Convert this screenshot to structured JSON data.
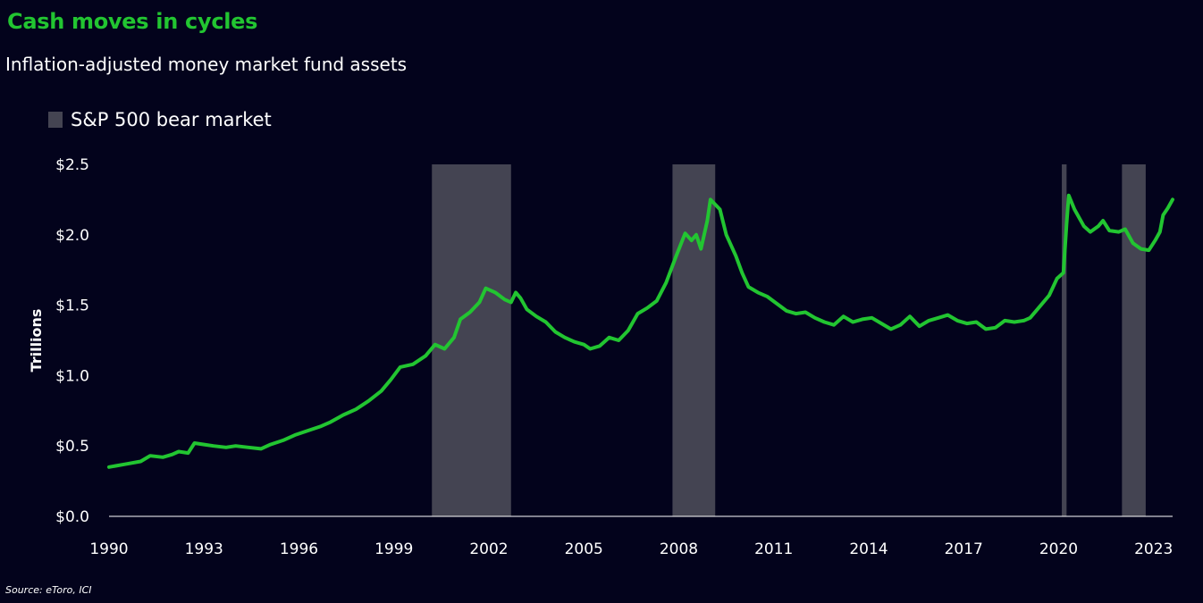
{
  "title": "Cash moves in cycles",
  "subtitle": "Inflation-adjusted money market fund assets",
  "source": "Source: eToro, ICI",
  "legend": {
    "label": "S&P 500 bear market",
    "color": "#444452"
  },
  "colors": {
    "line": "#22c531",
    "background": "#03031c",
    "bear": "#444452",
    "axis": "#ffffff"
  },
  "chart_data": {
    "type": "line",
    "title": "Cash moves in cycles",
    "subtitle": "Inflation-adjusted money market fund assets",
    "xlabel": "",
    "ylabel": "Trillions",
    "x_ticks": [
      "1990",
      "1993",
      "1996",
      "1999",
      "2002",
      "2005",
      "2008",
      "2011",
      "2014",
      "2017",
      "2020",
      "2023"
    ],
    "y_ticks": [
      "$0.0",
      "$0.5",
      "$1.0",
      "$1.5",
      "$2.0",
      "$2.5"
    ],
    "xlim": [
      1990,
      2023.6
    ],
    "ylim": [
      0,
      2.5
    ],
    "grid": false,
    "legend_position": "top-left",
    "bear_markets": [
      {
        "start": 2000.2,
        "end": 2002.7
      },
      {
        "start": 2007.8,
        "end": 2009.15
      },
      {
        "start": 2020.1,
        "end": 2020.25
      },
      {
        "start": 2022.0,
        "end": 2022.75
      }
    ],
    "series": [
      {
        "values": [
          [
            1990.0,
            0.35
          ],
          [
            1990.5,
            0.37
          ],
          [
            1991.0,
            0.39
          ],
          [
            1991.3,
            0.43
          ],
          [
            1991.7,
            0.42
          ],
          [
            1992.0,
            0.44
          ],
          [
            1992.2,
            0.46
          ],
          [
            1992.5,
            0.45
          ],
          [
            1992.7,
            0.52
          ],
          [
            1993.0,
            0.51
          ],
          [
            1993.3,
            0.5
          ],
          [
            1993.7,
            0.49
          ],
          [
            1994.0,
            0.5
          ],
          [
            1994.4,
            0.49
          ],
          [
            1994.8,
            0.48
          ],
          [
            1995.1,
            0.51
          ],
          [
            1995.5,
            0.54
          ],
          [
            1995.9,
            0.58
          ],
          [
            1996.3,
            0.61
          ],
          [
            1996.7,
            0.64
          ],
          [
            1997.0,
            0.67
          ],
          [
            1997.4,
            0.72
          ],
          [
            1997.8,
            0.76
          ],
          [
            1998.2,
            0.82
          ],
          [
            1998.6,
            0.89
          ],
          [
            1998.9,
            0.97
          ],
          [
            1999.2,
            1.06
          ],
          [
            1999.6,
            1.08
          ],
          [
            2000.0,
            1.14
          ],
          [
            2000.3,
            1.22
          ],
          [
            2000.6,
            1.19
          ],
          [
            2000.9,
            1.27
          ],
          [
            2001.1,
            1.4
          ],
          [
            2001.4,
            1.45
          ],
          [
            2001.7,
            1.52
          ],
          [
            2001.9,
            1.62
          ],
          [
            2002.2,
            1.59
          ],
          [
            2002.5,
            1.54
          ],
          [
            2002.7,
            1.52
          ],
          [
            2002.85,
            1.59
          ],
          [
            2003.0,
            1.55
          ],
          [
            2003.2,
            1.47
          ],
          [
            2003.5,
            1.42
          ],
          [
            2003.8,
            1.38
          ],
          [
            2004.1,
            1.31
          ],
          [
            2004.4,
            1.27
          ],
          [
            2004.7,
            1.24
          ],
          [
            2005.0,
            1.22
          ],
          [
            2005.2,
            1.19
          ],
          [
            2005.5,
            1.21
          ],
          [
            2005.8,
            1.27
          ],
          [
            2006.1,
            1.25
          ],
          [
            2006.4,
            1.32
          ],
          [
            2006.7,
            1.44
          ],
          [
            2007.0,
            1.48
          ],
          [
            2007.3,
            1.53
          ],
          [
            2007.6,
            1.66
          ],
          [
            2007.9,
            1.84
          ],
          [
            2008.2,
            2.01
          ],
          [
            2008.4,
            1.96
          ],
          [
            2008.55,
            2.0
          ],
          [
            2008.7,
            1.9
          ],
          [
            2008.9,
            2.1
          ],
          [
            2009.0,
            2.25
          ],
          [
            2009.3,
            2.18
          ],
          [
            2009.5,
            2.0
          ],
          [
            2009.8,
            1.85
          ],
          [
            2010.0,
            1.73
          ],
          [
            2010.2,
            1.63
          ],
          [
            2010.5,
            1.59
          ],
          [
            2010.8,
            1.56
          ],
          [
            2011.1,
            1.51
          ],
          [
            2011.4,
            1.46
          ],
          [
            2011.7,
            1.44
          ],
          [
            2012.0,
            1.45
          ],
          [
            2012.3,
            1.41
          ],
          [
            2012.6,
            1.38
          ],
          [
            2012.9,
            1.36
          ],
          [
            2013.2,
            1.42
          ],
          [
            2013.5,
            1.38
          ],
          [
            2013.8,
            1.4
          ],
          [
            2014.1,
            1.41
          ],
          [
            2014.4,
            1.37
          ],
          [
            2014.7,
            1.33
          ],
          [
            2015.0,
            1.36
          ],
          [
            2015.3,
            1.42
          ],
          [
            2015.6,
            1.35
          ],
          [
            2015.9,
            1.39
          ],
          [
            2016.2,
            1.41
          ],
          [
            2016.5,
            1.43
          ],
          [
            2016.8,
            1.39
          ],
          [
            2017.1,
            1.37
          ],
          [
            2017.4,
            1.38
          ],
          [
            2017.7,
            1.33
          ],
          [
            2018.0,
            1.34
          ],
          [
            2018.3,
            1.39
          ],
          [
            2018.6,
            1.38
          ],
          [
            2018.9,
            1.39
          ],
          [
            2019.1,
            1.41
          ],
          [
            2019.4,
            1.49
          ],
          [
            2019.7,
            1.57
          ],
          [
            2019.95,
            1.69
          ],
          [
            2020.15,
            1.73
          ],
          [
            2020.25,
            2.08
          ],
          [
            2020.32,
            2.28
          ],
          [
            2020.5,
            2.18
          ],
          [
            2020.8,
            2.06
          ],
          [
            2021.0,
            2.02
          ],
          [
            2021.25,
            2.06
          ],
          [
            2021.4,
            2.1
          ],
          [
            2021.6,
            2.03
          ],
          [
            2021.9,
            2.02
          ],
          [
            2022.1,
            2.04
          ],
          [
            2022.35,
            1.94
          ],
          [
            2022.6,
            1.9
          ],
          [
            2022.85,
            1.89
          ],
          [
            2023.05,
            1.96
          ],
          [
            2023.2,
            2.02
          ],
          [
            2023.3,
            2.14
          ],
          [
            2023.45,
            2.19
          ],
          [
            2023.6,
            2.25
          ]
        ]
      }
    ]
  }
}
